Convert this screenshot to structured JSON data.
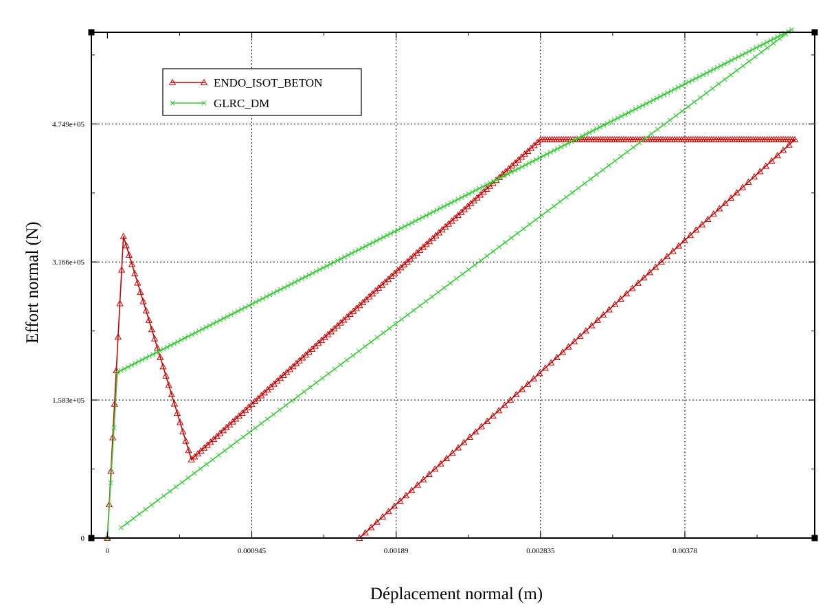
{
  "chart_data": {
    "type": "line",
    "title": "",
    "xlabel": "Déplacement normal (m)",
    "ylabel": "Effort normal (N)",
    "xlim": [
      -0.000105,
      0.00463
    ],
    "ylim": [
      0,
      580000
    ],
    "x_ticks": [
      {
        "value": 0,
        "label": "0"
      },
      {
        "value": 0.000945,
        "label": "0.000945"
      },
      {
        "value": 0.00189,
        "label": "0.00189"
      },
      {
        "value": 0.002835,
        "label": "0.002835"
      },
      {
        "value": 0.00378,
        "label": "0.00378"
      }
    ],
    "y_ticks": [
      {
        "value": 0,
        "label": "0"
      },
      {
        "value": 158300,
        "label": "1.583e+05"
      },
      {
        "value": 316600,
        "label": "3.166e+05"
      },
      {
        "value": 474900,
        "label": "4.749e+05"
      }
    ],
    "grid": true,
    "legend_position": "top-left",
    "series": [
      {
        "name": "ENDO_ISOT_BETON",
        "color": "#cc0000",
        "marker": "triangle-open",
        "segments": [
          {
            "x0": 0,
            "y0": 0,
            "x1": 0.000105,
            "y1": 346000,
            "n": 9
          },
          {
            "x0": 0.000105,
            "y0": 346000,
            "x1": 0.00055,
            "y1": 90000,
            "n": 24
          },
          {
            "x0": 0.00055,
            "y0": 90000,
            "x1": 0.002835,
            "y1": 457000,
            "n": 110
          },
          {
            "x0": 0.002835,
            "y0": 457000,
            "x1": 0.0045,
            "y1": 457000,
            "n": 110
          },
          {
            "x0": 0.0045,
            "y0": 457000,
            "x1": 0.00165,
            "y1": 0,
            "n": 75
          }
        ]
      },
      {
        "name": "GLRC_DM",
        "color": "#33cc33",
        "marker": "x",
        "segments": [
          {
            "x0": 0,
            "y0": 0,
            "x1": 6.5e-05,
            "y1": 190000,
            "n": 3
          },
          {
            "x0": 6.5e-05,
            "y0": 190000,
            "x1": 0.00448,
            "y1": 583000,
            "n": 190
          },
          {
            "x0": 0.00448,
            "y0": 583000,
            "x1": 9e-05,
            "y1": 12000,
            "n": 110
          }
        ]
      }
    ]
  }
}
